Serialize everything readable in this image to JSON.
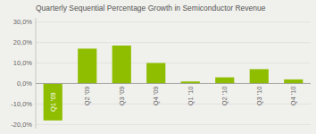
{
  "chart_data": {
    "type": "bar",
    "title": "Quarterly Sequential Percentage Growth in Semiconductor Revenue",
    "categories": [
      "Q1 '09",
      "Q2 '09",
      "Q3 '09",
      "Q4 '09",
      "Q1 '10",
      "Q2 '10",
      "Q3 '10",
      "Q4 '10"
    ],
    "values": [
      -18.0,
      17.0,
      18.5,
      10.0,
      1.0,
      3.0,
      7.0,
      2.0
    ],
    "color": "#8fbe00",
    "ylim": [
      -22,
      32
    ],
    "yticks": [
      {
        "value": -20,
        "label": "-20,0%"
      },
      {
        "value": -10,
        "label": "-10,0%"
      },
      {
        "value": 0,
        "label": "0,0%"
      },
      {
        "value": 10,
        "label": "10,0%"
      },
      {
        "value": 20,
        "label": "20,0%"
      },
      {
        "value": 30,
        "label": "30,0%"
      }
    ],
    "grid": true
  }
}
